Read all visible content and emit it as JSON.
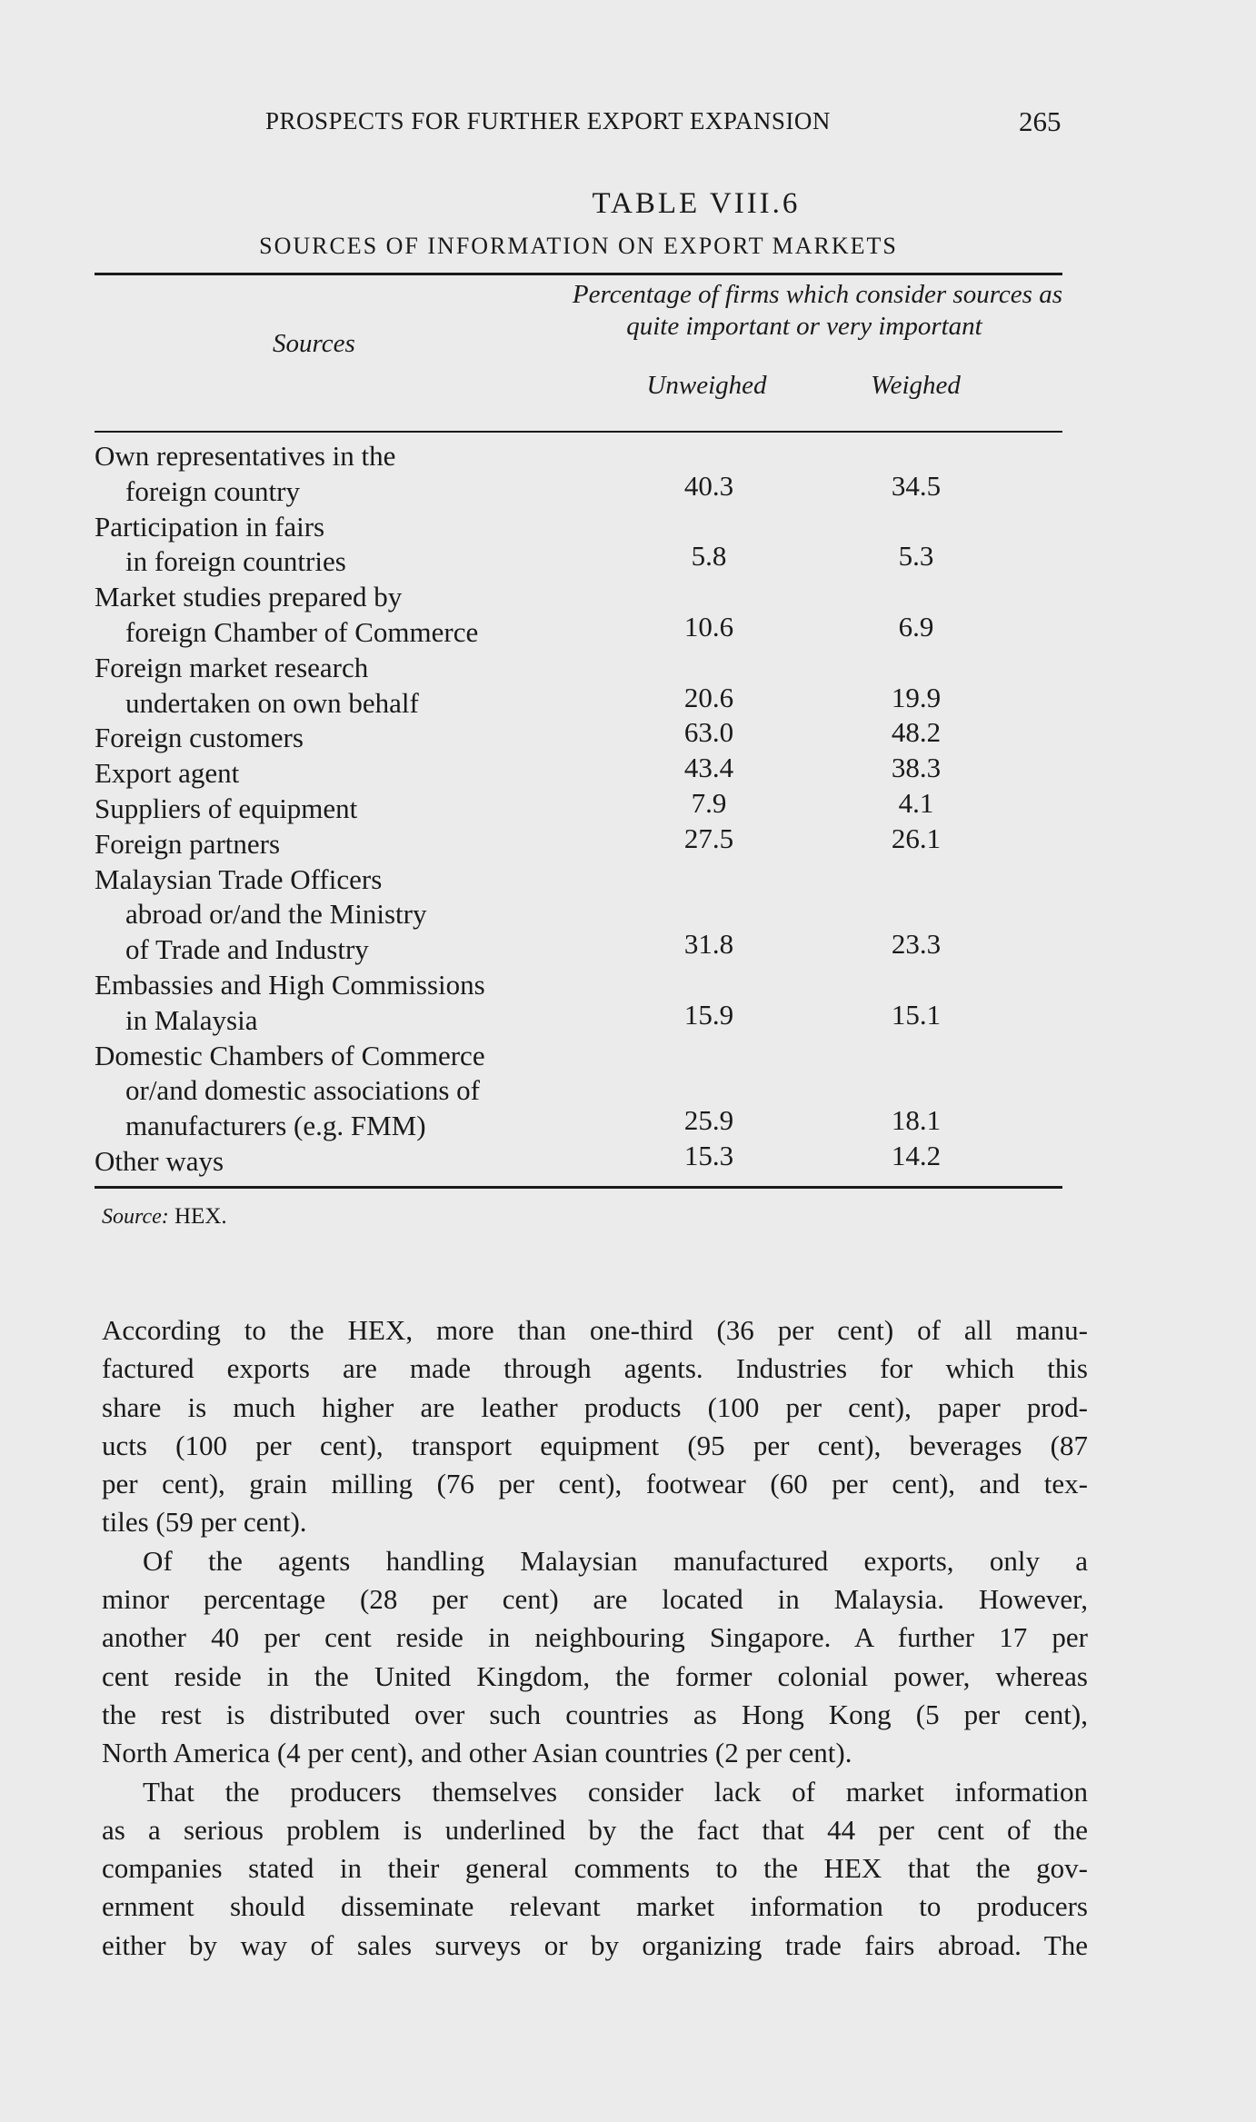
{
  "header": {
    "running_title": "PROSPECTS FOR FURTHER EXPORT EXPANSION",
    "page_number": "265"
  },
  "table": {
    "title": "TABLE VIII.6",
    "subtitle": "SOURCES OF INFORMATION ON EXPORT MARKETS",
    "col_group_line1": "Percentage of firms which consider sources as",
    "col_group_line2": "quite important or very important",
    "col_sources": "Sources",
    "col_unweighed": "Unweighed",
    "col_weighed": "Weighed",
    "rows": [
      {
        "label": [
          "Own representatives in the",
          "foreign country"
        ],
        "unweighed": "40.3",
        "weighed": "34.5"
      },
      {
        "label": [
          "Participation in fairs",
          "in foreign countries"
        ],
        "unweighed": "5.8",
        "weighed": "5.3"
      },
      {
        "label": [
          "Market studies prepared by",
          "foreign Chamber of Commerce"
        ],
        "unweighed": "10.6",
        "weighed": "6.9"
      },
      {
        "label": [
          "Foreign market research",
          "undertaken on own behalf"
        ],
        "unweighed": "20.6",
        "weighed": "19.9"
      },
      {
        "label": [
          "Foreign customers"
        ],
        "unweighed": "63.0",
        "weighed": "48.2"
      },
      {
        "label": [
          "Export agent"
        ],
        "unweighed": "43.4",
        "weighed": "38.3"
      },
      {
        "label": [
          "Suppliers of equipment"
        ],
        "unweighed": "7.9",
        "weighed": "4.1"
      },
      {
        "label": [
          "Foreign partners"
        ],
        "unweighed": "27.5",
        "weighed": "26.1"
      },
      {
        "label": [
          "Malaysian Trade Officers",
          "abroad or/and the Ministry",
          "of Trade and Industry"
        ],
        "unweighed": "31.8",
        "weighed": "23.3"
      },
      {
        "label": [
          "Embassies and High Commissions",
          "in Malaysia"
        ],
        "unweighed": "15.9",
        "weighed": "15.1"
      },
      {
        "label": [
          "Domestic Chambers of Commerce",
          "or/and domestic associations of",
          "manufacturers (e.g. FMM)"
        ],
        "unweighed": "25.9",
        "weighed": "18.1"
      },
      {
        "label": [
          "Other ways"
        ],
        "unweighed": "15.3",
        "weighed": "14.2"
      }
    ],
    "source_label": "Source:",
    "source_value": "HEX."
  },
  "body": {
    "paragraphs": [
      [
        "According to the HEX, more than one-third (36 per cent) of all manu-",
        "factured exports are made through agents. Industries for which this",
        "share is much higher are leather products (100 per cent), paper prod-",
        "ucts (100 per cent), transport equipment (95 per cent), beverages (87",
        "per cent), grain milling (76 per cent), footwear (60 per cent), and tex-",
        "tiles (59 per cent)."
      ],
      [
        "Of the agents handling Malaysian manufactured exports, only a",
        "minor percentage (28 per cent) are located in Malaysia. However,",
        "another 40 per cent reside in neighbouring Singapore. A further 17 per",
        "cent reside in the United Kingdom, the former colonial power, whereas",
        "the rest is distributed over such countries as Hong Kong (5 per cent),",
        "North America (4 per cent), and other Asian countries (2 per cent)."
      ],
      [
        "That the producers themselves consider lack of market information",
        "as a serious problem is underlined by the fact that 44 per cent of the",
        "companies stated in their general comments to the HEX that the gov-",
        "ernment should disseminate relevant market information to producers",
        "either by way of sales surveys or by organizing trade fairs abroad. The"
      ]
    ]
  }
}
